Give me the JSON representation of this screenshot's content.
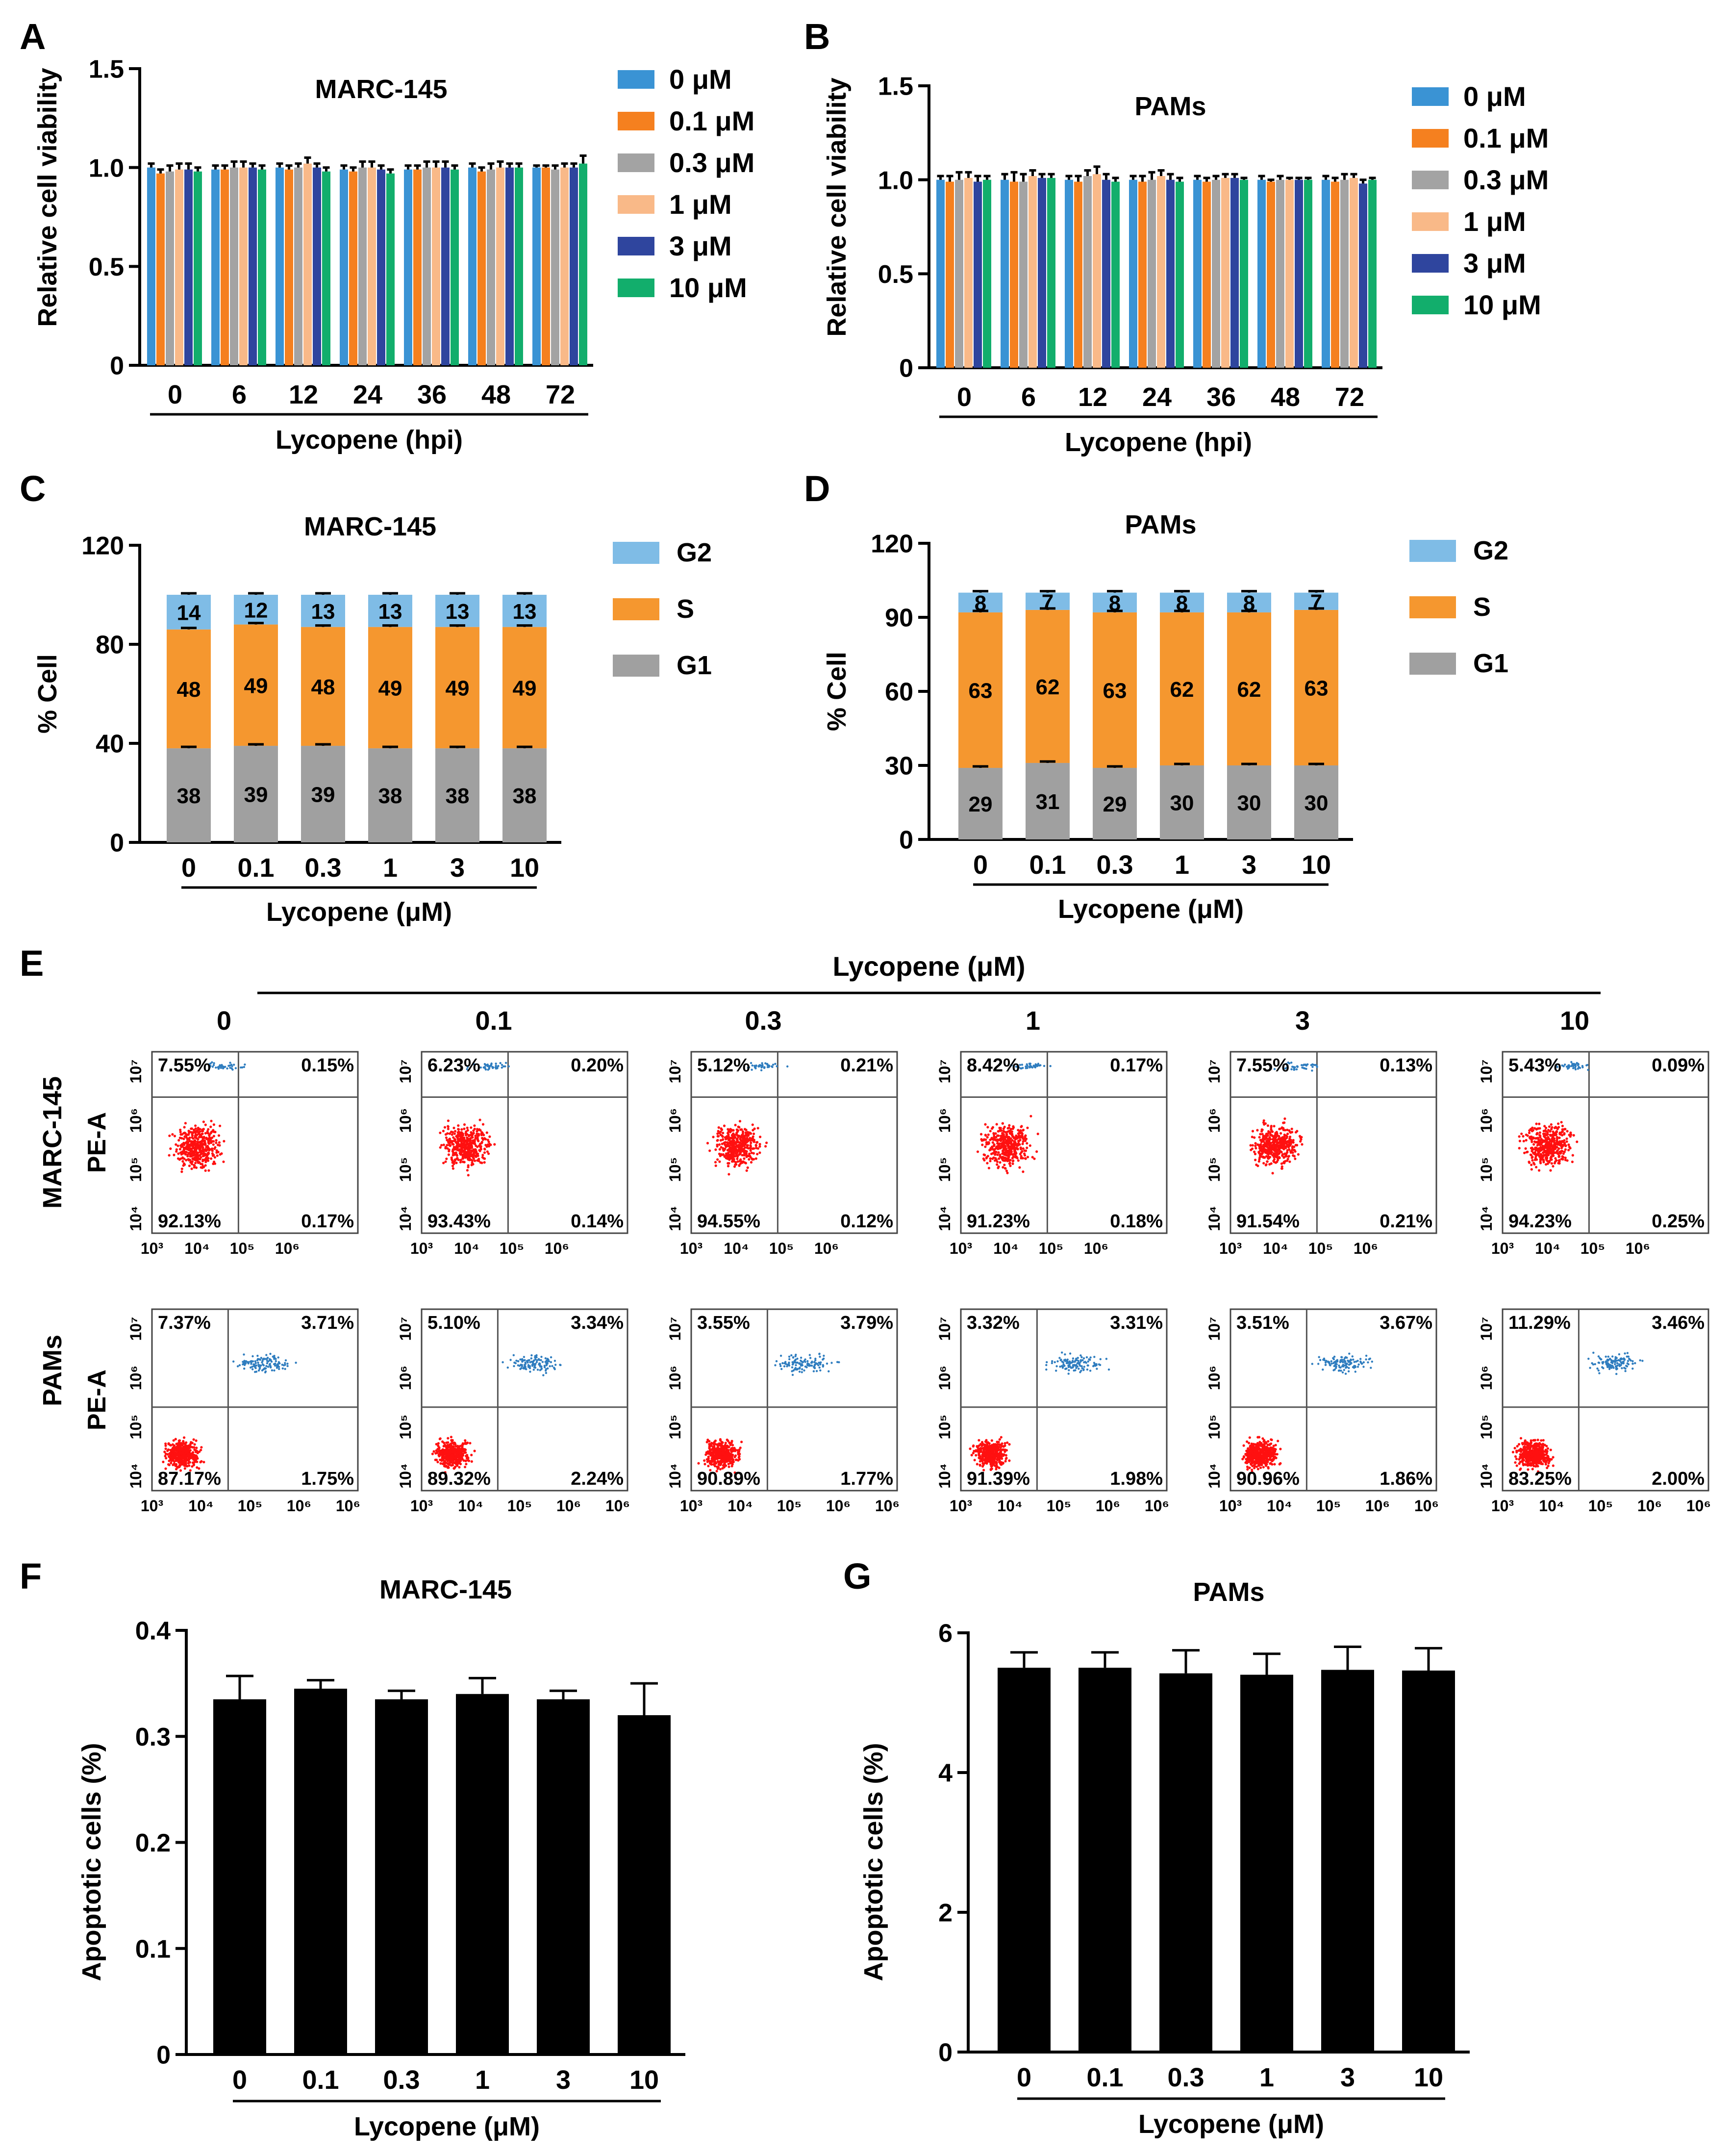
{
  "panel_letters": [
    "A",
    "B",
    "C",
    "D",
    "E",
    "F",
    "G"
  ],
  "colors": {
    "series": [
      "#3A93D4",
      "#F5801F",
      "#A3A3A3",
      "#F9B988",
      "#2F459E",
      "#12AE6C"
    ],
    "G2": "#7FBCE6",
    "S": "#F5972F",
    "G1": "#A0A0A0",
    "bar": "#000000",
    "dots_main": "#FF1010",
    "dots_blue": "#2F7DBF"
  },
  "chart_data": [
    {
      "panel": "A",
      "type": "bar",
      "title": "MARC-145",
      "ylabel": "Relative cell viability",
      "xlabel": "Lycopene (hpi)",
      "categories": [
        "0",
        "6",
        "12",
        "24",
        "36",
        "48",
        "72"
      ],
      "ylim": [
        0,
        1.5
      ],
      "yticks": [
        "0",
        "0.5",
        "1.0",
        "1.5"
      ],
      "legend": [
        "0    μM",
        "0.1 μM",
        "0.3 μM",
        "1    μM",
        "3    μM",
        "10  μM"
      ],
      "series": [
        {
          "values": [
            1.0,
            0.99,
            1.0,
            0.99,
            0.99,
            1.0,
            1.0
          ],
          "err": [
            0.02,
            0.02,
            0.02,
            0.02,
            0.02,
            0.02,
            0.01
          ]
        },
        {
          "values": [
            0.97,
            0.99,
            0.99,
            0.98,
            0.99,
            0.98,
            1.0
          ],
          "err": [
            0.02,
            0.02,
            0.02,
            0.02,
            0.02,
            0.02,
            0.01
          ]
        },
        {
          "values": [
            0.98,
            1.0,
            1.0,
            1.0,
            1.0,
            0.99,
            0.99
          ],
          "err": [
            0.03,
            0.03,
            0.02,
            0.03,
            0.03,
            0.03,
            0.02
          ]
        },
        {
          "values": [
            0.99,
            1.0,
            1.02,
            1.0,
            1.0,
            1.0,
            1.0
          ],
          "err": [
            0.03,
            0.03,
            0.03,
            0.03,
            0.03,
            0.03,
            0.02
          ]
        },
        {
          "values": [
            0.99,
            1.0,
            1.0,
            0.99,
            1.0,
            1.0,
            1.0
          ],
          "err": [
            0.03,
            0.02,
            0.02,
            0.02,
            0.03,
            0.02,
            0.02
          ]
        },
        {
          "values": [
            0.98,
            0.99,
            0.98,
            0.97,
            0.99,
            1.0,
            1.02
          ],
          "err": [
            0.02,
            0.02,
            0.02,
            0.02,
            0.02,
            0.02,
            0.04
          ]
        }
      ]
    },
    {
      "panel": "B",
      "type": "bar",
      "title": "PAMs",
      "ylabel": "Relative cell viability",
      "xlabel": "Lycopene (hpi)",
      "categories": [
        "0",
        "6",
        "12",
        "24",
        "36",
        "48",
        "72"
      ],
      "ylim": [
        0,
        1.5
      ],
      "yticks": [
        "0",
        "0.5",
        "1.0",
        "1.5"
      ],
      "legend": [
        "0    μM",
        "0.1 μM",
        "0.3 μM",
        "1    μM",
        "3    μM",
        "10  μM"
      ],
      "series": [
        {
          "values": [
            1.0,
            1.0,
            1.0,
            1.0,
            1.0,
            1.0,
            1.0
          ],
          "err": [
            0.02,
            0.03,
            0.02,
            0.02,
            0.02,
            0.02,
            0.02
          ]
        },
        {
          "values": [
            0.99,
            0.99,
            0.99,
            0.99,
            0.99,
            0.99,
            0.99
          ],
          "err": [
            0.03,
            0.05,
            0.03,
            0.03,
            0.02,
            0.01,
            0.02
          ]
        },
        {
          "values": [
            1.0,
            0.99,
            1.02,
            1.0,
            1.0,
            1.0,
            1.0
          ],
          "err": [
            0.04,
            0.04,
            0.03,
            0.04,
            0.02,
            0.02,
            0.03
          ]
        },
        {
          "values": [
            1.01,
            1.02,
            1.03,
            1.02,
            1.01,
            1.0,
            1.01
          ],
          "err": [
            0.03,
            0.03,
            0.04,
            0.03,
            0.02,
            0.01,
            0.02
          ]
        },
        {
          "values": [
            0.99,
            1.01,
            1.0,
            1.0,
            1.01,
            1.0,
            0.98
          ],
          "err": [
            0.03,
            0.02,
            0.03,
            0.03,
            0.02,
            0.01,
            0.02
          ]
        },
        {
          "values": [
            1.0,
            1.01,
            0.99,
            0.99,
            1.0,
            1.0,
            1.0
          ],
          "err": [
            0.02,
            0.02,
            0.02,
            0.02,
            0.01,
            0.01,
            0.01
          ]
        }
      ]
    },
    {
      "panel": "C",
      "type": "bar",
      "stacked": true,
      "title": "MARC-145",
      "ylabel": "% Cell",
      "xlabel": "Lycopene (μM)",
      "categories": [
        "0",
        "0.1",
        "0.3",
        "1",
        "3",
        "10"
      ],
      "ylim": [
        0,
        120
      ],
      "yticks": [
        "0",
        "40",
        "80",
        "120"
      ],
      "legend": [
        "G2",
        "S",
        "G1"
      ],
      "G1": [
        38,
        39,
        39,
        38,
        38,
        38
      ],
      "S": [
        48,
        49,
        48,
        49,
        49,
        49
      ],
      "G2": [
        14,
        12,
        13,
        13,
        13,
        13
      ],
      "G1_labels": [
        "38",
        "39",
        "39",
        "38",
        "38",
        "38"
      ],
      "S_labels": [
        "48",
        "49",
        "48",
        "49",
        "49",
        "49"
      ],
      "G2_labels": [
        "14",
        "12",
        "13",
        "13",
        "13",
        "13"
      ]
    },
    {
      "panel": "D",
      "type": "bar",
      "stacked": true,
      "title": "PAMs",
      "ylabel": "% Cell",
      "xlabel": "Lycopene (μM)",
      "categories": [
        "0",
        "0.1",
        "0.3",
        "1",
        "3",
        "10"
      ],
      "ylim": [
        0,
        120
      ],
      "yticks": [
        "0",
        "30",
        "60",
        "90",
        "120"
      ],
      "legend": [
        "G2",
        "S",
        "G1"
      ],
      "G1": [
        29,
        31,
        29,
        30,
        30,
        30
      ],
      "S": [
        63,
        62,
        63,
        62,
        62,
        63
      ],
      "G2": [
        8,
        7,
        8,
        8,
        8,
        7
      ],
      "G1_labels": [
        "29",
        "31",
        "29",
        "30",
        "30",
        "30"
      ],
      "S_labels": [
        "63",
        "62",
        "63",
        "62",
        "62",
        "63"
      ],
      "G2_labels": [
        "8",
        "7",
        "8",
        "8",
        "8",
        "7"
      ]
    },
    {
      "panel": "E",
      "type": "scatter",
      "title": "Lycopene (μM)",
      "concentrations": [
        "0",
        "0.1",
        "0.3",
        "1",
        "3",
        "10"
      ],
      "row_labels": [
        "MARC-145",
        "PAMs"
      ],
      "ylabel": "PE-A",
      "axis_ticks": {
        "x_row1": [
          "10³",
          "10⁴",
          "10⁵",
          "10⁶"
        ],
        "x_row2": [
          "10³",
          "10⁴",
          "10⁵",
          "10⁶",
          "10⁶"
        ],
        "y": [
          "10⁴",
          "10⁵",
          "10⁶",
          "10⁷"
        ]
      },
      "quadrants": [
        [
          {
            "ul": "7.55%",
            "ur": "0.15%",
            "ll": "92.13%",
            "lr": "0.17%"
          },
          {
            "ul": "6.23%",
            "ur": "0.20%",
            "ll": "93.43%",
            "lr": "0.14%"
          },
          {
            "ul": "5.12%",
            "ur": "0.21%",
            "ll": "94.55%",
            "lr": "0.12%"
          },
          {
            "ul": "8.42%",
            "ur": "0.17%",
            "ll": "91.23%",
            "lr": "0.18%"
          },
          {
            "ul": "7.55%",
            "ur": "0.13%",
            "ll": "91.54%",
            "lr": "0.21%"
          },
          {
            "ul": "5.43%",
            "ur": "0.09%",
            "ll": "94.23%",
            "lr": "0.25%"
          }
        ],
        [
          {
            "ul": "7.37%",
            "ur": "3.71%",
            "ll": "87.17%",
            "lr": "1.75%"
          },
          {
            "ul": "5.10%",
            "ur": "3.34%",
            "ll": "89.32%",
            "lr": "2.24%"
          },
          {
            "ul": "3.55%",
            "ur": "3.79%",
            "ll": "90.89%",
            "lr": "1.77%"
          },
          {
            "ul": "3.32%",
            "ur": "3.31%",
            "ll": "91.39%",
            "lr": "1.98%"
          },
          {
            "ul": "3.51%",
            "ur": "3.67%",
            "ll": "90.96%",
            "lr": "1.86%"
          },
          {
            "ul": "11.29%",
            "ur": "3.46%",
            "ll": "83.25%",
            "lr": "2.00%"
          }
        ]
      ]
    },
    {
      "panel": "F",
      "type": "bar",
      "title": "MARC-145",
      "ylabel": "Apoptotic cells (%)",
      "xlabel": "Lycopene (μM)",
      "categories": [
        "0",
        "0.1",
        "0.3",
        "1",
        "3",
        "10"
      ],
      "ylim": [
        0,
        0.4
      ],
      "yticks": [
        "0",
        "0.1",
        "0.2",
        "0.3",
        "0.4"
      ],
      "values": [
        0.335,
        0.345,
        0.335,
        0.34,
        0.335,
        0.32
      ],
      "err": [
        0.022,
        0.008,
        0.008,
        0.015,
        0.008,
        0.03
      ]
    },
    {
      "panel": "G",
      "type": "bar",
      "title": "PAMs",
      "ylabel": "Apoptotic cells (%)",
      "xlabel": "Lycopene (μM)",
      "categories": [
        "0",
        "0.1",
        "0.3",
        "1",
        "3",
        "10"
      ],
      "ylim": [
        0,
        6
      ],
      "yticks": [
        "0",
        "2",
        "4",
        "6"
      ],
      "values": [
        5.5,
        5.5,
        5.42,
        5.4,
        5.47,
        5.46
      ],
      "err": [
        0.22,
        0.22,
        0.33,
        0.3,
        0.33,
        0.32
      ]
    }
  ]
}
